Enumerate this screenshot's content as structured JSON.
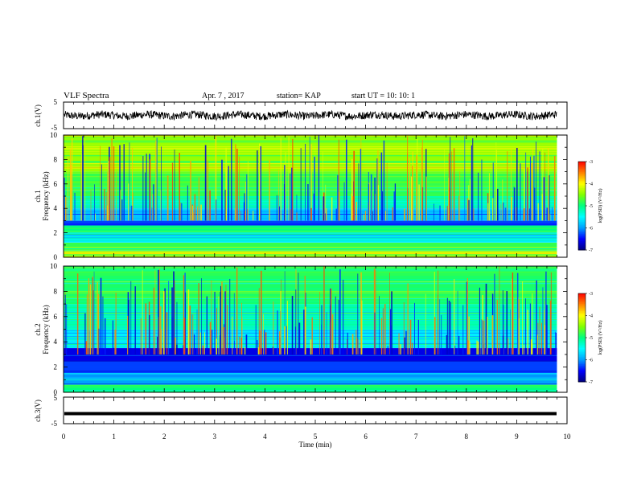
{
  "header": {
    "title": "VLF Spectra",
    "date": "Apr. 7 , 2017",
    "station": "station= KAP",
    "start": "start  UT =    10: 10: 1"
  },
  "colors": {
    "axis": "#000000",
    "trace": "#000000",
    "colormap": [
      "#000080",
      "#0000ff",
      "#00bfff",
      "#00ffff",
      "#00ff7f",
      "#7fff00",
      "#ffff00",
      "#ff7f00",
      "#ff0000",
      "#ffffff"
    ]
  },
  "chart_data": [
    {
      "type": "line",
      "panel": "ch1-waveform",
      "ylabel": "ch.1(V)",
      "ylim": [
        -5,
        5
      ],
      "yticks": [
        "5",
        "-5"
      ],
      "xlim": [
        0,
        10
      ],
      "series": [
        {
          "mean": 0,
          "amplitude": 1.5,
          "x_end": 9.8
        }
      ]
    },
    {
      "type": "heatmap",
      "panel": "ch1-spectrogram",
      "ylabel": "ch.1\nFrequency (kHz)",
      "ylim": [
        0,
        10
      ],
      "yticks": [
        "0",
        "2",
        "4",
        "6",
        "8",
        "10"
      ],
      "xlim": [
        0,
        9.8
      ],
      "colorbar": {
        "label": "log(PSD) (V²/Hz)",
        "range": [
          -7,
          -3
        ],
        "ticks": [
          "-3",
          "-4",
          "-5",
          "-6",
          "-7"
        ]
      },
      "bands_kHz": [
        {
          "range": [
            0,
            0.5
          ],
          "level": -4.3
        },
        {
          "range": [
            0.5,
            1.2
          ],
          "level": -4.8
        },
        {
          "range": [
            1.2,
            2.0
          ],
          "level": -5.6
        },
        {
          "range": [
            2.0,
            2.6
          ],
          "level": -5.0
        },
        {
          "range": [
            2.6,
            3.0
          ],
          "level": -6.4
        },
        {
          "range": [
            3.0,
            4.0
          ],
          "level": -5.8
        },
        {
          "range": [
            4.0,
            5.0
          ],
          "level": -5.2
        },
        {
          "range": [
            5.0,
            7.0
          ],
          "level": -4.8
        },
        {
          "range": [
            7.0,
            10.0
          ],
          "level": -4.4
        }
      ]
    },
    {
      "type": "heatmap",
      "panel": "ch2-spectrogram",
      "ylabel": "ch.2\nFrequency (kHz)",
      "ylim": [
        0,
        10
      ],
      "yticks": [
        "0",
        "2",
        "4",
        "6",
        "8",
        "10"
      ],
      "xlim": [
        0,
        9.8
      ],
      "colorbar": {
        "label": "log(PSD) (V²/Hz)",
        "range": [
          -7,
          -3
        ],
        "ticks": [
          "-3",
          "-4",
          "-5",
          "-6",
          "-7"
        ]
      },
      "bands_kHz": [
        {
          "range": [
            0,
            0.6
          ],
          "level": -5.0
        },
        {
          "range": [
            0.6,
            1.5
          ],
          "level": -6.0
        },
        {
          "range": [
            1.5,
            2.5
          ],
          "level": -6.3
        },
        {
          "range": [
            2.5,
            3.5
          ],
          "level": -6.6
        },
        {
          "range": [
            3.5,
            5.0
          ],
          "level": -5.6
        },
        {
          "range": [
            5.0,
            7.0
          ],
          "level": -5.2
        },
        {
          "range": [
            7.0,
            10.0
          ],
          "level": -4.9
        }
      ]
    },
    {
      "type": "line",
      "panel": "ch3-waveform",
      "ylabel": "ch.3(V)",
      "ylim": [
        -5,
        5
      ],
      "yticks": [
        "5",
        "-5"
      ],
      "xlim": [
        0,
        10
      ],
      "series": [
        {
          "mean": -1.2,
          "amplitude": 0.2,
          "x_end": 9.8
        }
      ]
    }
  ],
  "xaxis": {
    "label": "Time (min)",
    "ticks": [
      "0",
      "1",
      "2",
      "3",
      "4",
      "5",
      "6",
      "7",
      "8",
      "9",
      "10"
    ],
    "range": [
      0,
      10
    ]
  }
}
